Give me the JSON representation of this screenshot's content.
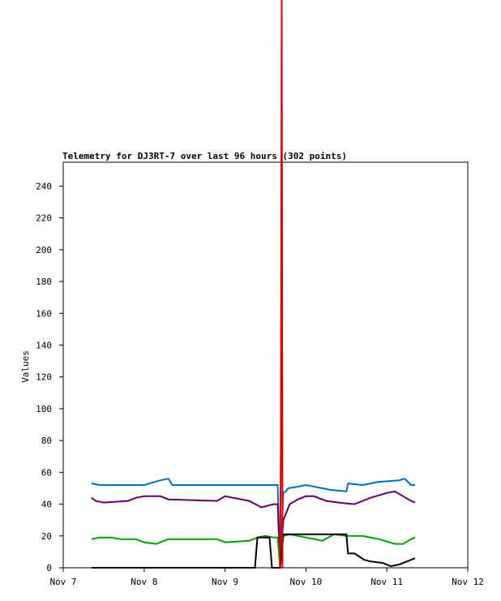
{
  "chart_data": {
    "type": "line",
    "title": "Telemetry for DJ3RT-7 over last 96 hours (302 points)",
    "y_label": "Values",
    "xlim": [
      7,
      12
    ],
    "xticks": [
      {
        "value": 7,
        "label": "Nov 7"
      },
      {
        "value": 8,
        "label": "Nov 8"
      },
      {
        "value": 9,
        "label": "Nov 9"
      },
      {
        "value": 10,
        "label": "Nov 10"
      },
      {
        "value": 11,
        "label": "Nov 11"
      },
      {
        "value": 12,
        "label": "Nov 12"
      }
    ],
    "ylim": [
      0,
      255
    ],
    "yticks": [
      0,
      20,
      40,
      60,
      80,
      100,
      120,
      140,
      160,
      180,
      200,
      220,
      240
    ],
    "series": [
      {
        "color": "#0070c0",
        "x": [
          7.35,
          7.45,
          8.0,
          8.2,
          8.3,
          8.35,
          9.4,
          9.65,
          9.68,
          9.72,
          9.75,
          9.78,
          9.9,
          10.0,
          10.3,
          10.5,
          10.52,
          10.7,
          10.9,
          11.15,
          11.22,
          11.3,
          11.35
        ],
        "values": [
          53,
          52,
          52,
          55,
          56,
          52,
          52,
          52,
          0,
          47,
          48,
          50,
          51,
          52,
          49,
          48,
          53,
          52,
          54,
          55,
          56,
          52,
          52
        ]
      },
      {
        "color": "#660066",
        "x": [
          7.35,
          7.4,
          7.5,
          7.8,
          7.9,
          8.0,
          8.2,
          8.3,
          8.9,
          9.0,
          9.3,
          9.45,
          9.6,
          9.65,
          9.68,
          9.72,
          9.8,
          9.9,
          10.0,
          10.1,
          10.25,
          10.4,
          10.6,
          10.8,
          11.0,
          11.1,
          11.2,
          11.3,
          11.35
        ],
        "values": [
          44,
          42,
          41,
          42,
          44,
          45,
          45,
          43,
          42,
          45,
          42,
          38,
          40,
          40,
          0,
          30,
          40,
          43,
          45,
          45,
          42,
          41,
          40,
          44,
          47,
          48,
          45,
          42,
          41
        ]
      },
      {
        "color": "#00a000",
        "x": [
          7.35,
          7.45,
          7.6,
          7.7,
          7.9,
          8.0,
          8.15,
          8.3,
          8.5,
          8.9,
          9.0,
          9.3,
          9.4,
          9.5,
          9.6,
          9.65,
          9.68,
          9.72,
          9.8,
          10.0,
          10.2,
          10.35,
          10.5,
          10.7,
          10.9,
          11.1,
          11.2,
          11.3,
          11.35
        ],
        "values": [
          18,
          19,
          19,
          18,
          18,
          16,
          15,
          18,
          18,
          18,
          16,
          17,
          19,
          20,
          19,
          19,
          0,
          20,
          21,
          19,
          17,
          21,
          20,
          20,
          18,
          15,
          15,
          18,
          19
        ]
      },
      {
        "color": "#000000",
        "x": [
          7.35,
          9.37,
          9.4,
          9.55,
          9.58,
          9.68,
          9.72,
          10.5,
          10.52,
          10.6,
          10.72,
          10.8,
          10.95,
          11.05,
          11.15,
          11.25,
          11.35
        ],
        "values": [
          0,
          0,
          19,
          19,
          0,
          0,
          21,
          21,
          9,
          9,
          5,
          4,
          3,
          1,
          2,
          4,
          6
        ]
      },
      {
        "color": "#e00000",
        "x": [
          9.68,
          9.69,
          9.695,
          9.7,
          9.71
        ],
        "values": [
          0,
          80,
          243,
          360,
          0
        ]
      }
    ]
  }
}
